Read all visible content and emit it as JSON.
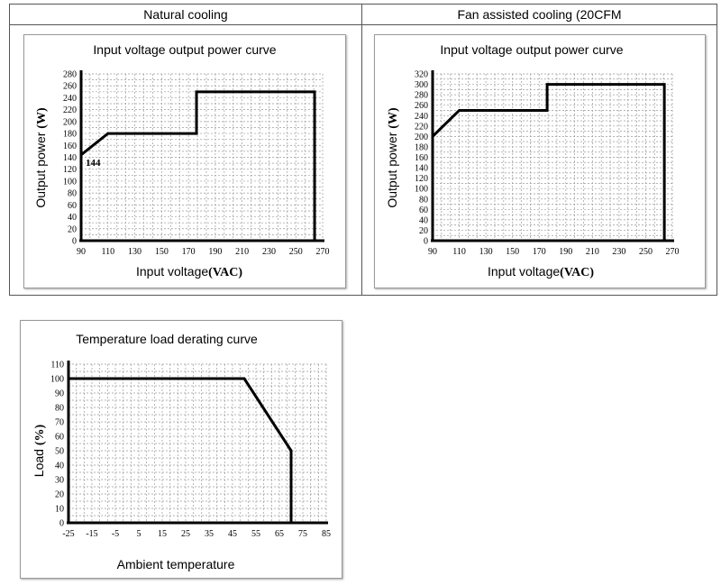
{
  "headers": {
    "left": "Natural cooling",
    "right": "Fan assisted cooling (20CFM"
  },
  "chart_data": [
    {
      "id": "natural",
      "type": "line",
      "title": "Input voltage output power curve",
      "xlabel": "Input voltage",
      "xlabel_unit": "(VAC)",
      "ylabel": "Output power",
      "ylabel_unit": "(W)",
      "xlim": [
        90,
        270
      ],
      "ylim": [
        0,
        280
      ],
      "xticks": [
        90,
        110,
        130,
        150,
        170,
        190,
        210,
        230,
        250,
        270
      ],
      "yticks": [
        0,
        20,
        40,
        60,
        80,
        100,
        120,
        140,
        160,
        180,
        200,
        220,
        240,
        260,
        280
      ],
      "grid": true,
      "series": [
        {
          "x": [
            90,
            110,
            176,
            176,
            264,
            264
          ],
          "y": [
            144,
            180,
            180,
            250,
            250,
            0
          ]
        }
      ],
      "annotations": [
        {
          "text": "144",
          "x": 90,
          "y": 144
        }
      ]
    },
    {
      "id": "fan",
      "type": "line",
      "title": "Input voltage output power curve",
      "xlabel": "Input voltage",
      "xlabel_unit": "(VAC)",
      "ylabel": "Output power",
      "ylabel_unit": "(W)",
      "xlim": [
        90,
        270
      ],
      "ylim": [
        0,
        320
      ],
      "xticks": [
        90,
        110,
        130,
        150,
        170,
        190,
        210,
        230,
        250,
        270
      ],
      "yticks": [
        0,
        20,
        40,
        60,
        80,
        100,
        120,
        140,
        160,
        180,
        200,
        220,
        240,
        260,
        280,
        300,
        320
      ],
      "grid": true,
      "series": [
        {
          "x": [
            90,
            110,
            176,
            176,
            264,
            264
          ],
          "y": [
            200,
            250,
            250,
            300,
            300,
            0
          ]
        }
      ],
      "annotations": []
    },
    {
      "id": "derating",
      "type": "line",
      "title": "Temperature load derating curve",
      "xlabel": "Ambient temperature",
      "xlabel_unit": "",
      "ylabel": "Load",
      "ylabel_unit": "(%)",
      "xlim": [
        -25,
        85
      ],
      "ylim": [
        0,
        110
      ],
      "xticks": [
        -25,
        -15,
        -5,
        5,
        15,
        25,
        35,
        45,
        55,
        65,
        75,
        85
      ],
      "yticks": [
        0,
        10,
        20,
        30,
        40,
        50,
        60,
        70,
        80,
        90,
        100,
        110
      ],
      "grid": true,
      "series": [
        {
          "x": [
            -25,
            50,
            70,
            70
          ],
          "y": [
            100,
            100,
            50,
            0
          ]
        }
      ],
      "annotations": []
    }
  ]
}
